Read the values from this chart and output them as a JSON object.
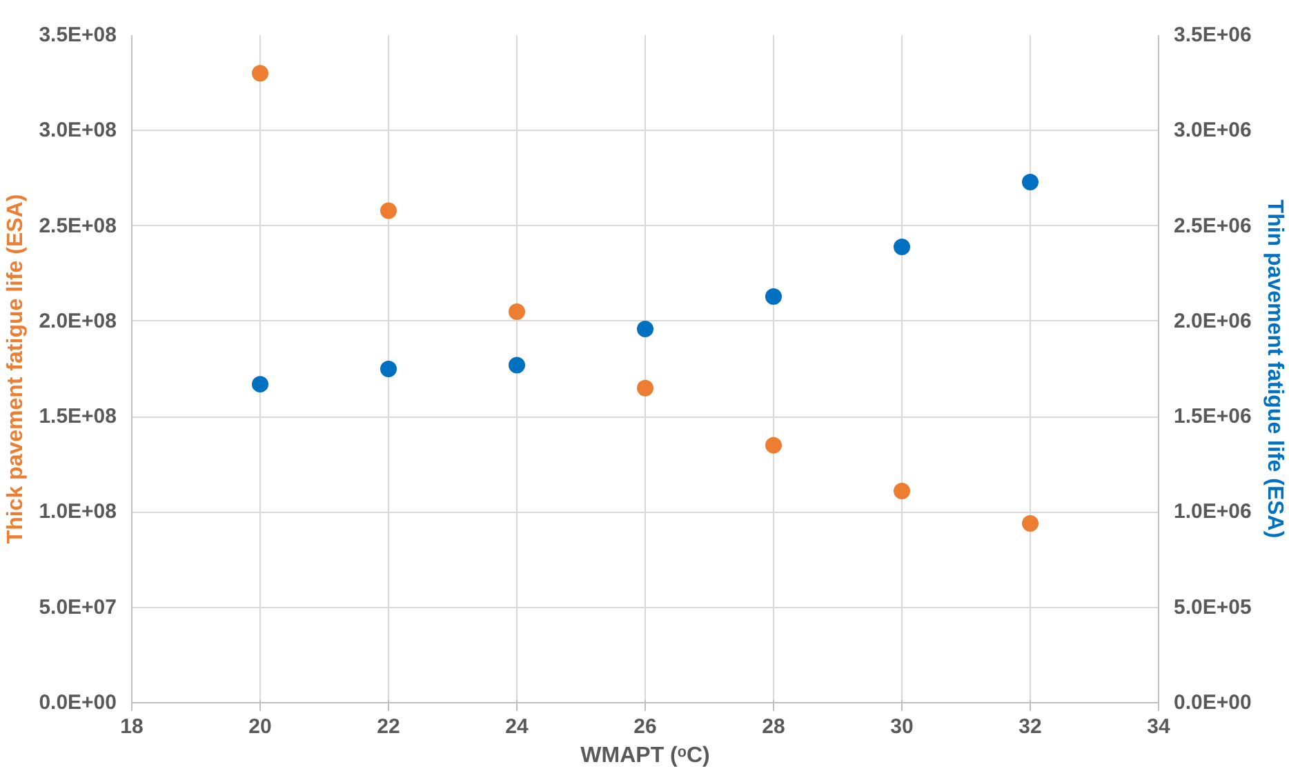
{
  "chart_data": {
    "type": "scatter",
    "xlabel": "WMAPT (ᵒC)",
    "ylabel": "Thick pavement fatigue life (ESA)",
    "y2label": "Thin pavement fatigue life (ESA)",
    "x": [
      20,
      22,
      24,
      26,
      28,
      30,
      32
    ],
    "series": [
      {
        "color": "#ed7d31",
        "values": [
          330000000,
          258000000,
          205000000,
          165000000,
          135000000,
          111000000,
          94000000
        ]
      },
      {
        "color": "#0070c0",
        "axis": "y2",
        "values": [
          1670000,
          1750000,
          1770000,
          1960000,
          2130000,
          2390000,
          2730000
        ]
      }
    ],
    "xlim": [
      18,
      34
    ],
    "xticks": [
      18,
      20,
      22,
      24,
      26,
      28,
      30,
      32,
      34
    ],
    "ylim": [
      0,
      350000000
    ],
    "yticks": [
      {
        "value": 0,
        "label": "0.0E+00"
      },
      {
        "value": 50000000,
        "label": "5.0E+07"
      },
      {
        "value": 100000000,
        "label": "1.0E+08"
      },
      {
        "value": 150000000,
        "label": "1.5E+08"
      },
      {
        "value": 200000000,
        "label": "2.0E+08"
      },
      {
        "value": 250000000,
        "label": "2.5E+08"
      },
      {
        "value": 300000000,
        "label": "3.0E+08"
      },
      {
        "value": 350000000,
        "label": "3.5E+08"
      }
    ],
    "y2lim": [
      0,
      3500000
    ],
    "y2ticks": [
      {
        "value": 0,
        "label": "0.0E+00"
      },
      {
        "value": 500000,
        "label": "5.0E+05"
      },
      {
        "value": 1000000,
        "label": "1.0E+06"
      },
      {
        "value": 1500000,
        "label": "1.5E+06"
      },
      {
        "value": 2000000,
        "label": "2.0E+06"
      },
      {
        "value": 2500000,
        "label": "2.5E+06"
      },
      {
        "value": 3000000,
        "label": "3.0E+06"
      },
      {
        "value": 3500000,
        "label": "3.5E+06"
      }
    ],
    "grid": true,
    "marker": "circle"
  }
}
